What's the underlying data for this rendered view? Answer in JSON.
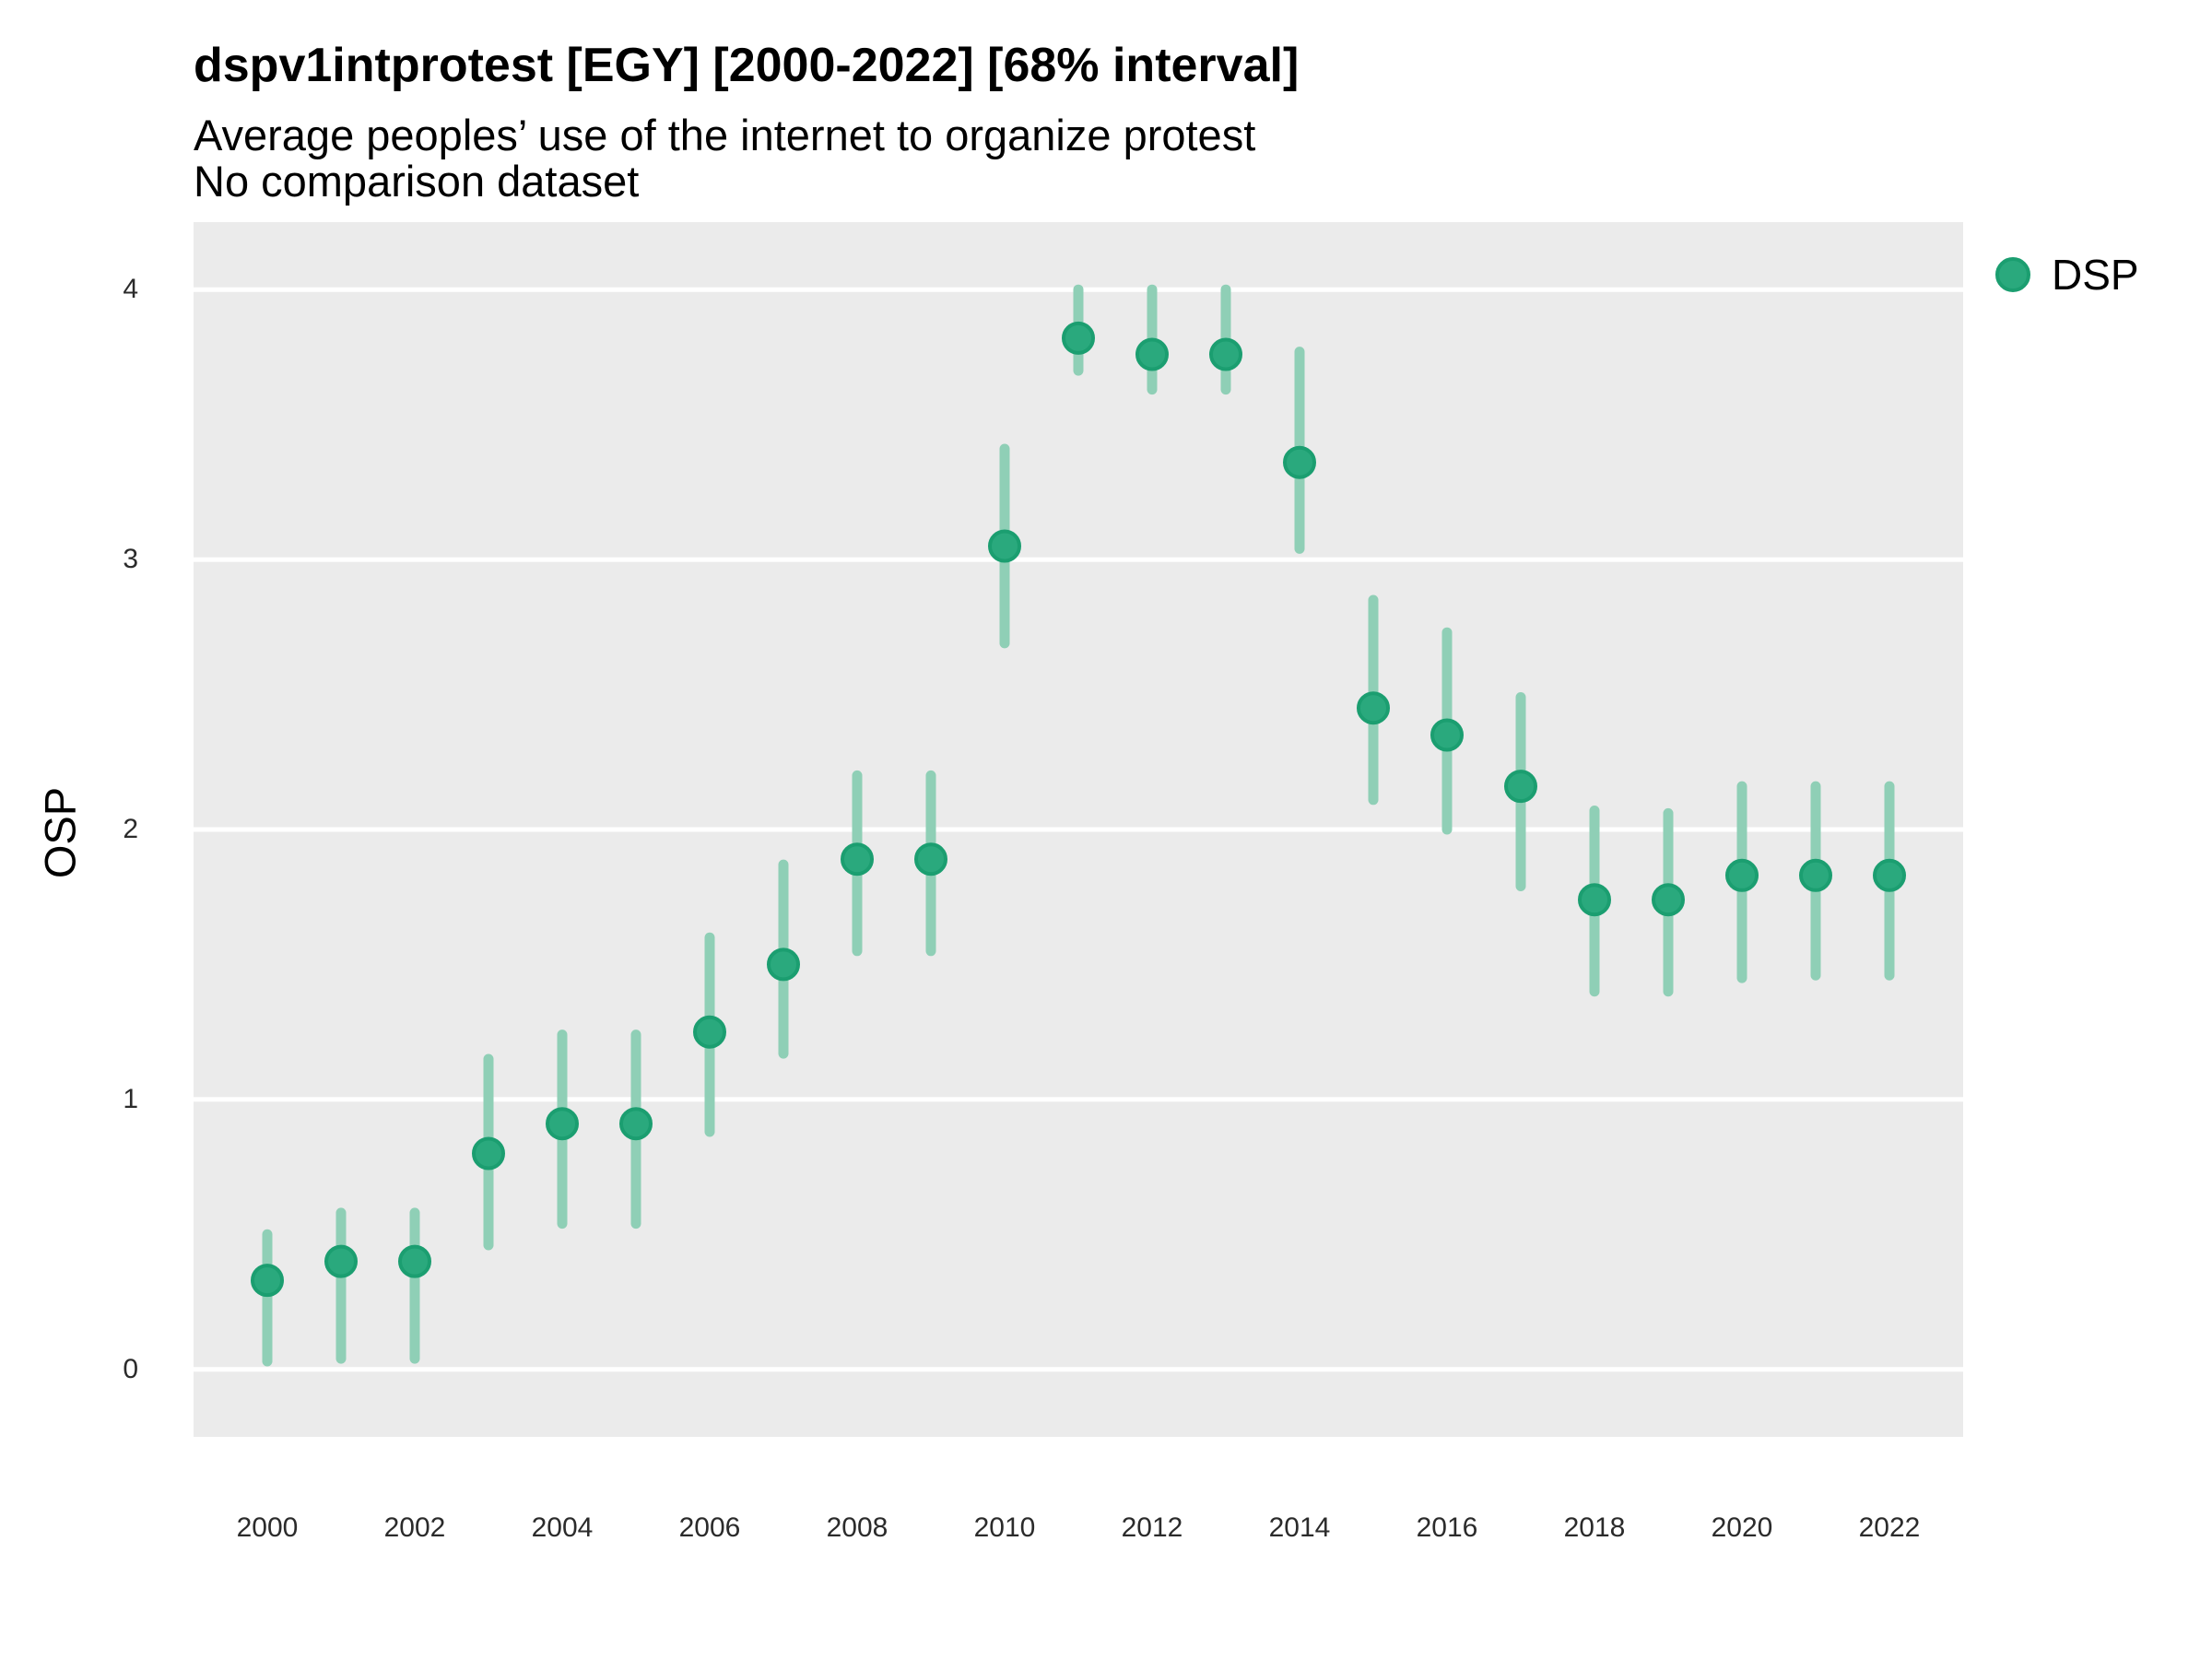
{
  "chart_data": {
    "type": "scatter",
    "title": "dspv1intprotest [EGY] [2000-2022] [68% interval]",
    "subtitle": "Average peoples’ use of the internet to organize protest",
    "note": "No comparison dataset",
    "xlabel": "",
    "ylabel": "OSP",
    "xlim": [
      1999,
      2023
    ],
    "ylim": [
      -0.25,
      4.25
    ],
    "yticks": [
      0,
      1,
      2,
      3,
      4
    ],
    "xticks": [
      2000,
      2002,
      2004,
      2006,
      2008,
      2010,
      2012,
      2014,
      2016,
      2018,
      2020,
      2022
    ],
    "grid": "horizontal-major-only",
    "legend": {
      "position": "right-top",
      "entries": [
        {
          "label": "DSP",
          "color": "#2AA97D"
        }
      ]
    },
    "series": [
      {
        "name": "DSP",
        "interval": "68%",
        "points": [
          {
            "year": 2000,
            "value": 0.33,
            "lo": 0.03,
            "hi": 0.5
          },
          {
            "year": 2001,
            "value": 0.4,
            "lo": 0.04,
            "hi": 0.58
          },
          {
            "year": 2002,
            "value": 0.4,
            "lo": 0.04,
            "hi": 0.58
          },
          {
            "year": 2003,
            "value": 0.8,
            "lo": 0.46,
            "hi": 1.15
          },
          {
            "year": 2004,
            "value": 0.91,
            "lo": 0.54,
            "hi": 1.24
          },
          {
            "year": 2005,
            "value": 0.91,
            "lo": 0.54,
            "hi": 1.24
          },
          {
            "year": 2006,
            "value": 1.25,
            "lo": 0.88,
            "hi": 1.6
          },
          {
            "year": 2007,
            "value": 1.5,
            "lo": 1.17,
            "hi": 1.87
          },
          {
            "year": 2008,
            "value": 1.89,
            "lo": 1.55,
            "hi": 2.2
          },
          {
            "year": 2009,
            "value": 1.89,
            "lo": 1.55,
            "hi": 2.2
          },
          {
            "year": 2010,
            "value": 3.05,
            "lo": 2.69,
            "hi": 3.41
          },
          {
            "year": 2011,
            "value": 3.82,
            "lo": 3.7,
            "hi": 4.0
          },
          {
            "year": 2012,
            "value": 3.76,
            "lo": 3.63,
            "hi": 4.0
          },
          {
            "year": 2013,
            "value": 3.76,
            "lo": 3.63,
            "hi": 4.0
          },
          {
            "year": 2014,
            "value": 3.36,
            "lo": 3.04,
            "hi": 3.77
          },
          {
            "year": 2015,
            "value": 2.45,
            "lo": 2.11,
            "hi": 2.85
          },
          {
            "year": 2016,
            "value": 2.35,
            "lo": 2.0,
            "hi": 2.73
          },
          {
            "year": 2017,
            "value": 2.16,
            "lo": 1.79,
            "hi": 2.49
          },
          {
            "year": 2018,
            "value": 1.74,
            "lo": 1.4,
            "hi": 2.07
          },
          {
            "year": 2019,
            "value": 1.74,
            "lo": 1.4,
            "hi": 2.06
          },
          {
            "year": 2020,
            "value": 1.83,
            "lo": 1.45,
            "hi": 2.16
          },
          {
            "year": 2021,
            "value": 1.83,
            "lo": 1.46,
            "hi": 2.16
          },
          {
            "year": 2022,
            "value": 1.83,
            "lo": 1.46,
            "hi": 2.16
          }
        ]
      }
    ]
  },
  "colors": {
    "point_fill": "#2AA97D",
    "point_stroke": "#1B9E70",
    "interval_bar": "#8FCFB6",
    "panel_background": "#EBEBEB",
    "gridline": "#FFFFFF",
    "text": "#000000",
    "axis_text": "#2B2B2B"
  }
}
